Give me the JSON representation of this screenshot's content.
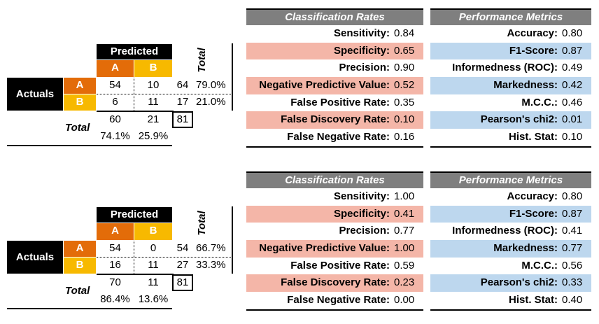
{
  "labels": {
    "predicted": "Predicted",
    "actuals": "Actuals",
    "class_a": "A",
    "class_b": "B",
    "total": "Total",
    "classification_rates": "Classification Rates",
    "performance_metrics": "Performance Metrics"
  },
  "panels": [
    {
      "matrix": {
        "aa": "54",
        "ab": "10",
        "ba": "6",
        "bb": "11",
        "row_total_a": "64",
        "row_total_b": "17",
        "row_pct_a": "79.0%",
        "row_pct_b": "21.0%",
        "col_total_a": "60",
        "col_total_b": "21",
        "col_pct_a": "74.1%",
        "col_pct_b": "25.9%",
        "grand_total": "81"
      },
      "classification_rates": [
        {
          "label": "Sensitivity:",
          "value": "0.84",
          "highlight": false
        },
        {
          "label": "Specificity:",
          "value": "0.65",
          "highlight": true
        },
        {
          "label": "Precision:",
          "value": "0.90",
          "highlight": false
        },
        {
          "label": "Negative Predictive Value:",
          "value": "0.52",
          "highlight": true
        },
        {
          "label": "False Positive Rate:",
          "value": "0.35",
          "highlight": false
        },
        {
          "label": "False Discovery Rate:",
          "value": "0.10",
          "highlight": true
        },
        {
          "label": "False Negative Rate:",
          "value": "0.16",
          "highlight": false
        }
      ],
      "performance_metrics": [
        {
          "label": "Accuracy:",
          "value": "0.80",
          "highlight": false
        },
        {
          "label": "F1-Score:",
          "value": "0.87",
          "highlight": true
        },
        {
          "label": "Informedness (ROC):",
          "value": "0.49",
          "highlight": false
        },
        {
          "label": "Markedness:",
          "value": "0.42",
          "highlight": true
        },
        {
          "label": "M.C.C.:",
          "value": "0.46",
          "highlight": false
        },
        {
          "label": "Pearson's chi2:",
          "value": "0.01",
          "highlight": true
        },
        {
          "label": "Hist. Stat:",
          "value": "0.10",
          "highlight": false
        }
      ]
    },
    {
      "matrix": {
        "aa": "54",
        "ab": "0",
        "ba": "16",
        "bb": "11",
        "row_total_a": "54",
        "row_total_b": "27",
        "row_pct_a": "66.7%",
        "row_pct_b": "33.3%",
        "col_total_a": "70",
        "col_total_b": "11",
        "col_pct_a": "86.4%",
        "col_pct_b": "13.6%",
        "grand_total": "81"
      },
      "classification_rates": [
        {
          "label": "Sensitivity:",
          "value": "1.00",
          "highlight": false
        },
        {
          "label": "Specificity:",
          "value": "0.41",
          "highlight": true
        },
        {
          "label": "Precision:",
          "value": "0.77",
          "highlight": false
        },
        {
          "label": "Negative Predictive Value:",
          "value": "1.00",
          "highlight": true
        },
        {
          "label": "False Positive Rate:",
          "value": "0.59",
          "highlight": false
        },
        {
          "label": "False Discovery Rate:",
          "value": "0.23",
          "highlight": true
        },
        {
          "label": "False Negative Rate:",
          "value": "0.00",
          "highlight": false
        }
      ],
      "performance_metrics": [
        {
          "label": "Accuracy:",
          "value": "0.80",
          "highlight": false
        },
        {
          "label": "F1-Score:",
          "value": "0.87",
          "highlight": true
        },
        {
          "label": "Informedness (ROC):",
          "value": "0.41",
          "highlight": false
        },
        {
          "label": "Markedness:",
          "value": "0.77",
          "highlight": true
        },
        {
          "label": "M.C.C.:",
          "value": "0.56",
          "highlight": false
        },
        {
          "label": "Pearson's chi2:",
          "value": "0.33",
          "highlight": true
        },
        {
          "label": "Hist. Stat:",
          "value": "0.40",
          "highlight": false
        }
      ]
    }
  ],
  "colors": {
    "class_a": "#e36c09",
    "class_b": "#f7b900",
    "header_gray": "#7f7f7f",
    "rate_highlight": "#f4b6a8",
    "metric_highlight": "#bdd7ee"
  }
}
